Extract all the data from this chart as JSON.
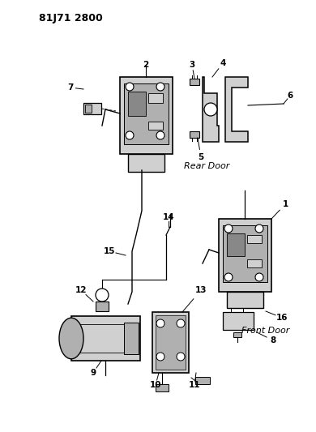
{
  "title": "81J71 2800",
  "bg_color": "#ffffff",
  "lc": "#000000",
  "fc_light": "#d0d0d0",
  "fc_mid": "#b0b0b0",
  "fc_dark": "#888888",
  "rear_door_label": "Rear Door",
  "front_door_label": "Front Door",
  "figsize": [
    3.9,
    5.33
  ],
  "dpi": 100
}
